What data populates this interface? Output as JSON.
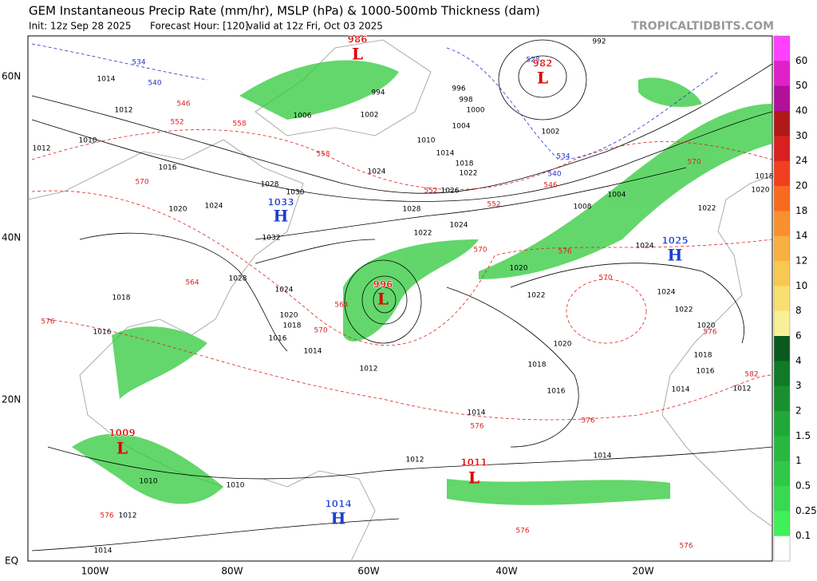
{
  "header": {
    "title": "GEM Instantaneous Precip Rate (mm/hr), MSLP (hPa) & 1000-500mb Thickness (dam)",
    "init": "Init: 12z Sep 28 2025",
    "forecast": "Forecast Hour: [120]",
    "valid": "valid at 12z Fri, Oct 03 2025",
    "credit": "TROPICALTIDBITS.COM"
  },
  "axes": {
    "lat": [
      "60N",
      "40N",
      "20N",
      "EQ"
    ],
    "lon": [
      "100W",
      "80W",
      "60W",
      "40W",
      "20W"
    ]
  },
  "centers": [
    {
      "type": "H",
      "value": 1033
    },
    {
      "type": "H",
      "value": 1025
    },
    {
      "type": "L",
      "value": 996
    },
    {
      "type": "L",
      "value": 986
    },
    {
      "type": "L",
      "value": 982
    },
    {
      "type": "L",
      "value": 1009
    },
    {
      "type": "L",
      "value": 1011
    },
    {
      "type": "H",
      "value": 1014
    }
  ],
  "isobar_labels": [
    1014,
    1012,
    1012,
    1010,
    1016,
    1020,
    1024,
    1028,
    1030,
    1032,
    1028,
    1024,
    1020,
    1018,
    1016,
    1014,
    1012,
    1018,
    1016,
    1002,
    1006,
    1010,
    1014,
    1018,
    1022,
    1024,
    1026,
    1028,
    1024,
    1022,
    1020,
    1022,
    1020,
    1018,
    1016,
    1014,
    1012,
    1010,
    1014,
    1012,
    992,
    994,
    996,
    998,
    1000,
    1004,
    1024,
    1022,
    1020,
    1018,
    1024,
    1022,
    1020,
    1018,
    1016,
    1014,
    1012,
    1008,
    1004,
    1002,
    1014,
    1010
  ],
  "thickness_labels": [
    534,
    540,
    546,
    552,
    558,
    558,
    570,
    564,
    570,
    564,
    576,
    552,
    552,
    546,
    540,
    534,
    528,
    570,
    576,
    570,
    570,
    576,
    582,
    576,
    576,
    576,
    576,
    576
  ],
  "colorbar": {
    "labels": [
      60,
      50,
      40,
      30,
      24,
      20,
      18,
      14,
      12,
      10,
      8,
      6,
      4,
      3,
      2,
      1.5,
      1,
      0.5,
      0.25,
      0.1
    ],
    "colors": [
      "#ff40ff",
      "#e020c8",
      "#b0109a",
      "#b01818",
      "#d82020",
      "#f04020",
      "#f86a20",
      "#f89030",
      "#f8b040",
      "#f8c850",
      "#f8e070",
      "#f8f098",
      "#0a5a1e",
      "#107a28",
      "#189030",
      "#20a838",
      "#28b840",
      "#30c848",
      "#38d850",
      "#40f058",
      "#ffffff"
    ]
  }
}
